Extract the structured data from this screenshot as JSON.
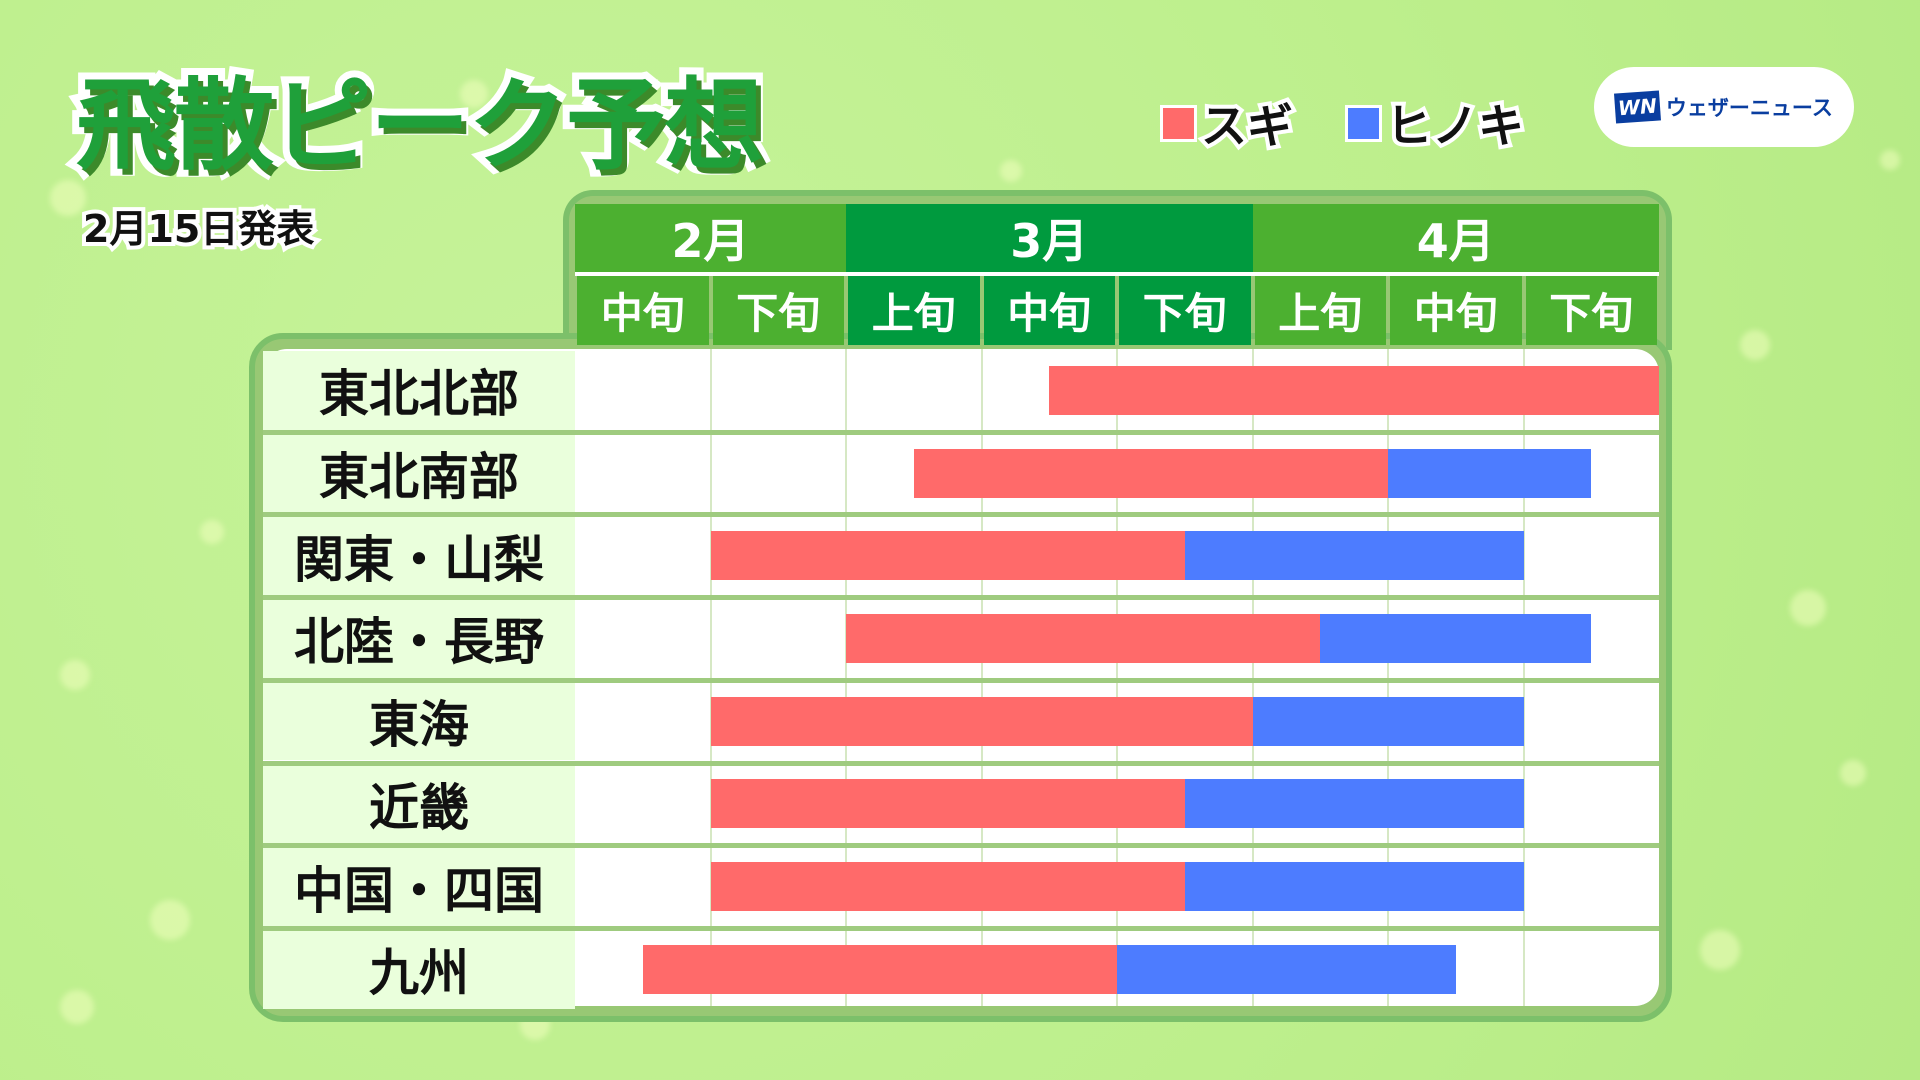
{
  "title": "飛散ピーク予想",
  "announcement": "2月15日発表",
  "brand": {
    "mark": "WN",
    "name": "ウェザーニュース"
  },
  "colors": {
    "sugi": "#ff6a6a",
    "hinoki": "#4d7cff",
    "month_light": "#4cb030",
    "month_dark": "#009a3e"
  },
  "chart_data": {
    "type": "bar",
    "subtype": "gantt",
    "legend": [
      {
        "name": "スギ",
        "color": "#ff6a6a"
      },
      {
        "name": "ヒノキ",
        "color": "#4d7cff"
      }
    ],
    "legend_placement": "top-right",
    "months": [
      {
        "label": "2月",
        "span": 2
      },
      {
        "label": "3月",
        "span": 3
      },
      {
        "label": "4月",
        "span": 3
      }
    ],
    "categories": [
      "中旬",
      "下旬",
      "上旬",
      "中旬",
      "下旬",
      "上旬",
      "中旬",
      "下旬"
    ],
    "units_note": "start/end measured in period columns from the start of 2月中旬",
    "rows": [
      {
        "region": "東北北部",
        "sugi": [
          3.5,
          8
        ],
        "hinoki": null
      },
      {
        "region": "東北南部",
        "sugi": [
          2.5,
          6
        ],
        "hinoki": [
          6,
          7.5
        ]
      },
      {
        "region": "関東・山梨",
        "sugi": [
          1,
          4.5
        ],
        "hinoki": [
          4.5,
          7
        ]
      },
      {
        "region": "北陸・長野",
        "sugi": [
          2,
          5.5
        ],
        "hinoki": [
          5.5,
          7.5
        ]
      },
      {
        "region": "東海",
        "sugi": [
          1,
          5
        ],
        "hinoki": [
          5,
          7
        ]
      },
      {
        "region": "近畿",
        "sugi": [
          1,
          4.5
        ],
        "hinoki": [
          4.5,
          7
        ]
      },
      {
        "region": "中国・四国",
        "sugi": [
          1,
          4.5
        ],
        "hinoki": [
          4.5,
          7
        ]
      },
      {
        "region": "九州",
        "sugi": [
          0.5,
          4
        ],
        "hinoki": [
          4,
          6.5
        ]
      }
    ]
  }
}
